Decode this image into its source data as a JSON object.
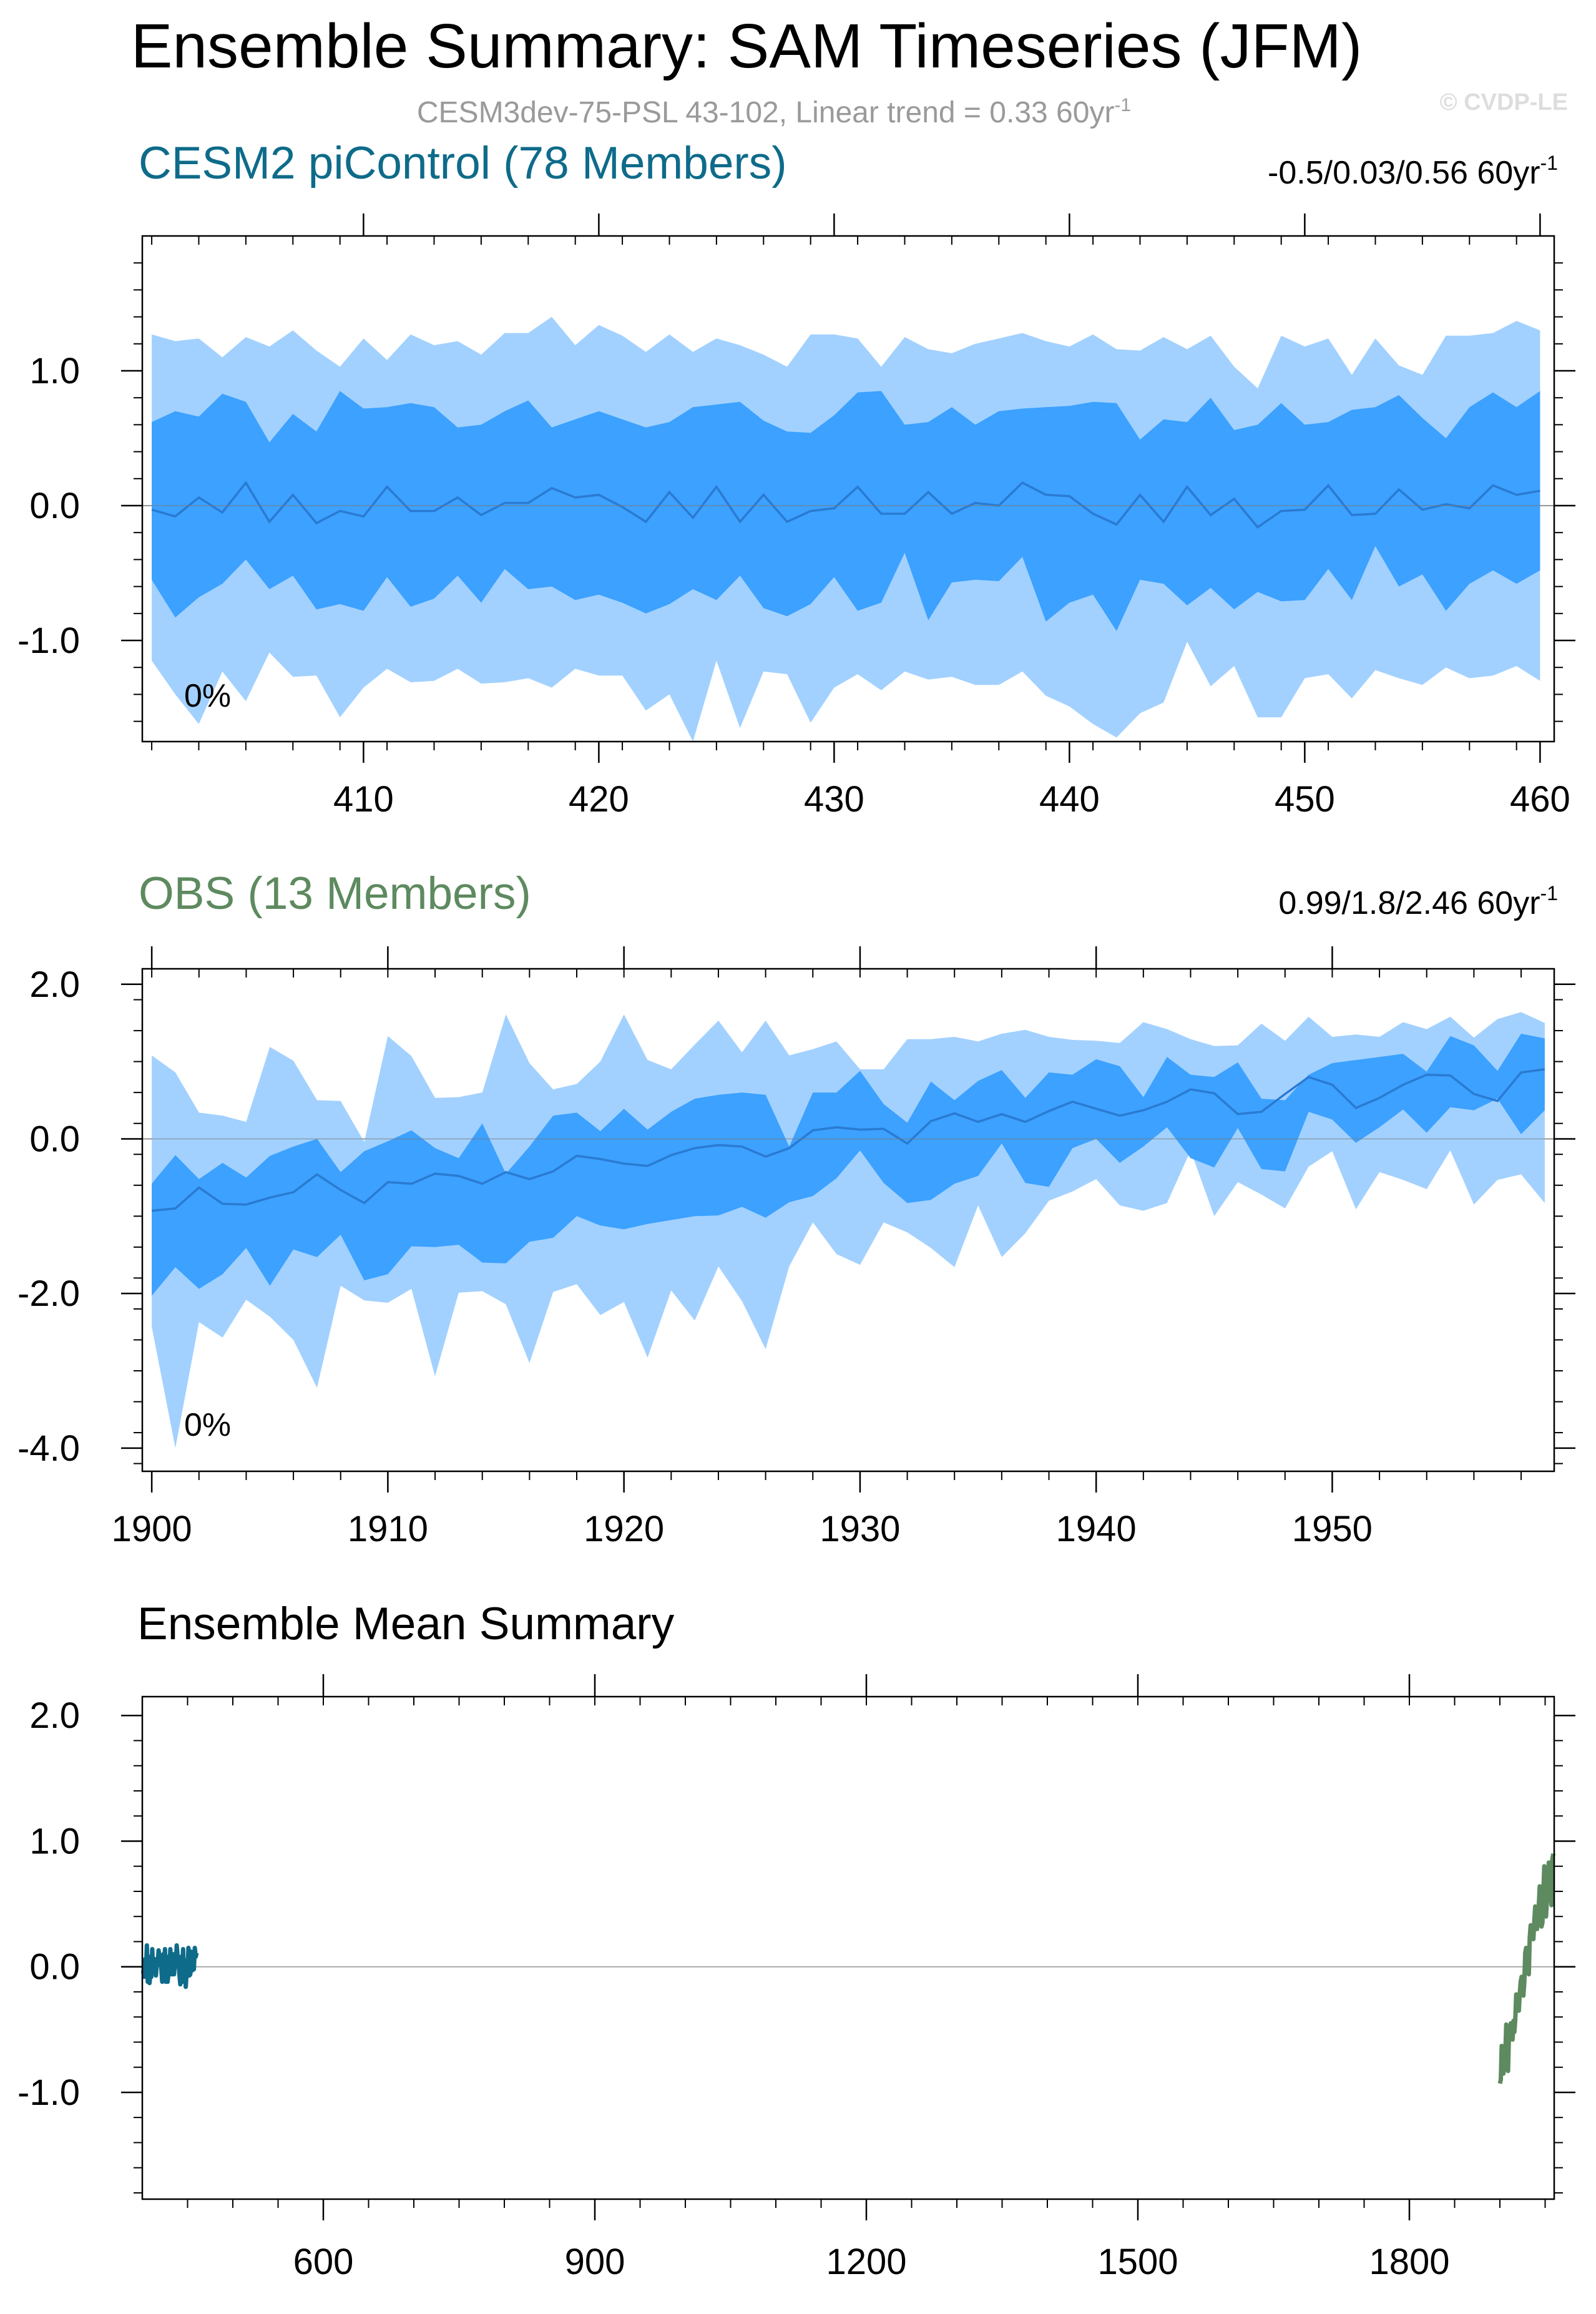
{
  "title": "Ensemble Summary: SAM Timeseries (JFM)",
  "subtitle": "CESM3dev-75-PSL 43-102, Linear trend = 0.33 60yr",
  "subtitle_sup": "-1",
  "watermark": "© CVDP-LE",
  "colors": {
    "band_outer": "#a2d1ff",
    "band_inner": "#3ca1ff",
    "mean_line": "#2a7ad1",
    "model": "#0e6b8a",
    "obs": "#5d8a5f",
    "frame": "#000000",
    "zero_line": "#aaaaaa"
  },
  "chart_data": [
    {
      "type": "area",
      "title": "CESM2 piControl (78 Members)",
      "stat": "-0.5/0.03/0.56 60yr",
      "stat_sup": "-1",
      "pct_label": "0%",
      "x_start": 401,
      "xlim": [
        400.6,
        460.6
      ],
      "ylim": [
        -1.75,
        2.0
      ],
      "xticks": [
        410,
        420,
        430,
        440,
        450,
        460
      ],
      "xtick_labels": [
        "410",
        "420",
        "430",
        "440",
        "450",
        "460"
      ],
      "yticks": [
        1.0,
        0.0,
        -1.0
      ],
      "ytick_labels": [
        "1.0",
        "0.0",
        "-1.0"
      ],
      "series": [
        {
          "name": "max",
          "values": [
            1.27,
            1.22,
            1.24,
            1.1,
            1.25,
            1.18,
            1.3,
            1.15,
            1.03,
            1.24,
            1.08,
            1.27,
            1.19,
            1.22,
            1.12,
            1.28,
            1.28,
            1.4,
            1.19,
            1.34,
            1.26,
            1.14,
            1.27,
            1.14,
            1.24,
            1.19,
            1.12,
            1.03,
            1.27,
            1.27,
            1.24,
            1.03,
            1.25,
            1.16,
            1.13,
            1.2,
            1.24,
            1.28,
            1.22,
            1.18,
            1.27,
            1.16,
            1.15,
            1.25,
            1.16,
            1.26,
            1.03,
            0.87,
            1.26,
            1.18,
            1.24,
            0.97,
            1.24,
            1.04,
            0.97,
            1.26,
            1.26,
            1.28,
            1.37,
            1.3
          ]
        },
        {
          "name": "p75",
          "values": [
            0.62,
            0.7,
            0.66,
            0.83,
            0.77,
            0.47,
            0.68,
            0.55,
            0.85,
            0.72,
            0.73,
            0.76,
            0.73,
            0.58,
            0.6,
            0.7,
            0.78,
            0.58,
            0.64,
            0.7,
            0.64,
            0.58,
            0.62,
            0.73,
            0.75,
            0.77,
            0.63,
            0.55,
            0.54,
            0.67,
            0.84,
            0.85,
            0.6,
            0.62,
            0.73,
            0.6,
            0.7,
            0.72,
            0.73,
            0.74,
            0.77,
            0.76,
            0.49,
            0.64,
            0.62,
            0.8,
            0.56,
            0.6,
            0.76,
            0.6,
            0.62,
            0.71,
            0.73,
            0.82,
            0.65,
            0.5,
            0.73,
            0.84,
            0.73,
            0.85
          ]
        },
        {
          "name": "mean",
          "values": [
            -0.03,
            -0.08,
            0.06,
            -0.05,
            0.17,
            -0.12,
            0.08,
            -0.13,
            -0.04,
            -0.08,
            0.14,
            -0.04,
            -0.04,
            0.06,
            -0.07,
            0.02,
            0.02,
            0.13,
            0.06,
            0.08,
            -0.01,
            -0.12,
            0.1,
            -0.09,
            0.14,
            -0.12,
            0.08,
            -0.12,
            -0.04,
            -0.02,
            0.14,
            -0.06,
            -0.06,
            0.1,
            -0.06,
            0.02,
            0.0,
            0.17,
            0.08,
            0.07,
            -0.06,
            -0.14,
            0.08,
            -0.12,
            0.14,
            -0.07,
            0.05,
            -0.16,
            -0.04,
            -0.03,
            0.15,
            -0.07,
            -0.06,
            0.12,
            -0.03,
            0.01,
            -0.02,
            0.15,
            0.08,
            0.11
          ]
        },
        {
          "name": "p25",
          "values": [
            -0.55,
            -0.83,
            -0.68,
            -0.58,
            -0.4,
            -0.62,
            -0.52,
            -0.77,
            -0.73,
            -0.78,
            -0.53,
            -0.75,
            -0.69,
            -0.52,
            -0.72,
            -0.47,
            -0.62,
            -0.6,
            -0.7,
            -0.66,
            -0.72,
            -0.8,
            -0.73,
            -0.62,
            -0.7,
            -0.52,
            -0.76,
            -0.82,
            -0.73,
            -0.53,
            -0.78,
            -0.72,
            -0.35,
            -0.85,
            -0.57,
            -0.55,
            -0.56,
            -0.38,
            -0.86,
            -0.72,
            -0.66,
            -0.93,
            -0.55,
            -0.58,
            -0.74,
            -0.61,
            -0.77,
            -0.64,
            -0.71,
            -0.7,
            -0.47,
            -0.7,
            -0.3,
            -0.6,
            -0.51,
            -0.78,
            -0.58,
            -0.48,
            -0.58,
            -0.48
          ]
        },
        {
          "name": "min",
          "values": [
            -1.15,
            -1.4,
            -1.62,
            -1.23,
            -1.45,
            -1.09,
            -1.27,
            -1.26,
            -1.57,
            -1.35,
            -1.21,
            -1.31,
            -1.3,
            -1.21,
            -1.32,
            -1.31,
            -1.28,
            -1.35,
            -1.21,
            -1.26,
            -1.26,
            -1.52,
            -1.4,
            -1.75,
            -1.15,
            -1.65,
            -1.23,
            -1.25,
            -1.61,
            -1.35,
            -1.25,
            -1.37,
            -1.23,
            -1.29,
            -1.27,
            -1.33,
            -1.33,
            -1.23,
            -1.41,
            -1.49,
            -1.62,
            -1.72,
            -1.54,
            -1.46,
            -1.01,
            -1.34,
            -1.19,
            -1.57,
            -1.57,
            -1.28,
            -1.25,
            -1.43,
            -1.22,
            -1.28,
            -1.33,
            -1.2,
            -1.28,
            -1.26,
            -1.19,
            -1.3
          ]
        }
      ]
    },
    {
      "type": "area",
      "title": "OBS (13 Members)",
      "stat": "0.99/1.8/2.46 60yr",
      "stat_sup": "-1",
      "pct_label": "0%",
      "x_start": 1900,
      "xlim": [
        1899.6,
        1959.4
      ],
      "ylim": [
        -4.3,
        2.2
      ],
      "xticks": [
        1900,
        1910,
        1920,
        1930,
        1940,
        1950
      ],
      "xtick_labels": [
        "1900",
        "1910",
        "1920",
        "1930",
        "1940",
        "1950"
      ],
      "yticks": [
        2.0,
        0.0,
        -2.0,
        -4.0
      ],
      "ytick_labels": [
        "2.0",
        "0.0",
        "-2.0",
        "-4.0"
      ],
      "series": [
        {
          "name": "max",
          "values": [
            1.08,
            0.86,
            0.34,
            0.3,
            0.22,
            1.19,
            1.01,
            0.5,
            0.49,
            -0.04,
            1.33,
            1.07,
            0.53,
            0.54,
            0.6,
            1.61,
            0.98,
            0.64,
            0.71,
            1.0,
            1.61,
            1.02,
            0.9,
            1.22,
            1.53,
            1.12,
            1.53,
            1.08,
            1.16,
            1.26,
            0.9,
            0.9,
            1.29,
            1.29,
            1.32,
            1.26,
            1.36,
            1.41,
            1.32,
            1.28,
            1.27,
            1.24,
            1.51,
            1.42,
            1.29,
            1.2,
            1.21,
            1.49,
            1.27,
            1.58,
            1.32,
            1.35,
            1.32,
            1.51,
            1.42,
            1.58,
            1.31,
            1.55,
            1.64,
            1.5
          ]
        },
        {
          "name": "p75",
          "values": [
            -0.58,
            -0.21,
            -0.52,
            -0.31,
            -0.5,
            -0.22,
            -0.1,
            0.0,
            -0.43,
            -0.16,
            -0.03,
            0.11,
            -0.12,
            -0.25,
            0.2,
            -0.45,
            -0.1,
            0.3,
            0.34,
            0.1,
            0.39,
            0.12,
            0.35,
            0.52,
            0.57,
            0.6,
            0.57,
            -0.1,
            0.6,
            0.6,
            0.88,
            0.45,
            0.21,
            0.74,
            0.5,
            0.75,
            0.89,
            0.53,
            0.86,
            0.83,
            1.03,
            0.94,
            0.54,
            1.06,
            0.83,
            0.8,
            0.99,
            0.52,
            0.5,
            0.83,
            0.98,
            1.02,
            1.06,
            1.1,
            0.87,
            1.33,
            1.21,
            0.88,
            1.36,
            1.3
          ]
        },
        {
          "name": "mean",
          "values": [
            -0.93,
            -0.9,
            -0.63,
            -0.84,
            -0.85,
            -0.76,
            -0.69,
            -0.46,
            -0.66,
            -0.83,
            -0.56,
            -0.58,
            -0.45,
            -0.48,
            -0.58,
            -0.43,
            -0.52,
            -0.42,
            -0.22,
            -0.26,
            -0.32,
            -0.35,
            -0.21,
            -0.12,
            -0.08,
            -0.1,
            -0.23,
            -0.12,
            0.11,
            0.15,
            0.12,
            0.13,
            -0.06,
            0.23,
            0.33,
            0.22,
            0.32,
            0.22,
            0.36,
            0.48,
            0.39,
            0.3,
            0.37,
            0.48,
            0.64,
            0.59,
            0.32,
            0.35,
            0.58,
            0.8,
            0.7,
            0.4,
            0.53,
            0.7,
            0.83,
            0.82,
            0.58,
            0.49,
            0.86,
            0.9
          ]
        },
        {
          "name": "p25",
          "values": [
            -2.03,
            -1.66,
            -1.94,
            -1.75,
            -1.41,
            -1.9,
            -1.43,
            -1.53,
            -1.24,
            -1.83,
            -1.75,
            -1.39,
            -1.4,
            -1.37,
            -1.6,
            -1.61,
            -1.33,
            -1.28,
            -1.0,
            -1.12,
            -1.17,
            -1.1,
            -1.05,
            -1.0,
            -0.99,
            -0.88,
            -1.02,
            -0.82,
            -0.74,
            -0.51,
            -0.15,
            -0.57,
            -0.83,
            -0.79,
            -0.58,
            -0.48,
            -0.06,
            -0.57,
            -0.62,
            -0.12,
            0.0,
            -0.31,
            -0.1,
            0.15,
            -0.25,
            -0.37,
            0.14,
            -0.39,
            -0.42,
            0.35,
            0.25,
            -0.05,
            0.15,
            0.38,
            0.08,
            0.41,
            0.37,
            0.52,
            0.06,
            0.37
          ]
        },
        {
          "name": "min",
          "values": [
            -2.43,
            -4.0,
            -2.37,
            -2.57,
            -2.08,
            -2.3,
            -2.6,
            -3.22,
            -1.9,
            -2.09,
            -2.12,
            -1.94,
            -3.07,
            -1.99,
            -1.97,
            -2.14,
            -2.9,
            -1.98,
            -1.88,
            -2.28,
            -2.11,
            -2.83,
            -1.96,
            -2.35,
            -1.65,
            -2.1,
            -2.72,
            -1.65,
            -1.08,
            -1.49,
            -1.63,
            -1.08,
            -1.21,
            -1.41,
            -1.66,
            -0.86,
            -1.53,
            -1.22,
            -0.8,
            -0.68,
            -0.52,
            -0.86,
            -0.93,
            -0.83,
            -0.15,
            -1.0,
            -0.56,
            -0.72,
            -0.9,
            -0.36,
            -0.16,
            -0.91,
            -0.43,
            -0.53,
            -0.65,
            -0.15,
            -0.85,
            -0.53,
            -0.46,
            -0.83
          ]
        }
      ]
    },
    {
      "type": "line",
      "title": "Ensemble Mean Summary",
      "xlim": [
        400,
        1960
      ],
      "ylim": [
        -1.85,
        2.15
      ],
      "xticks": [
        600,
        900,
        1200,
        1500,
        1800
      ],
      "xtick_labels": [
        "600",
        "900",
        "1200",
        "1500",
        "1800"
      ],
      "yticks": [
        2.0,
        1.0,
        0.0,
        -1.0
      ],
      "ytick_labels": [
        "2.0",
        "1.0",
        "0.0",
        "-1.0"
      ],
      "series_refs": [
        {
          "name": "CESM2 piControl",
          "source_chart": 0,
          "x_start": 401,
          "values_from": "mean"
        },
        {
          "name": "OBS",
          "source_chart": 1,
          "x_start": 1900,
          "values_from": "mean"
        }
      ]
    }
  ]
}
